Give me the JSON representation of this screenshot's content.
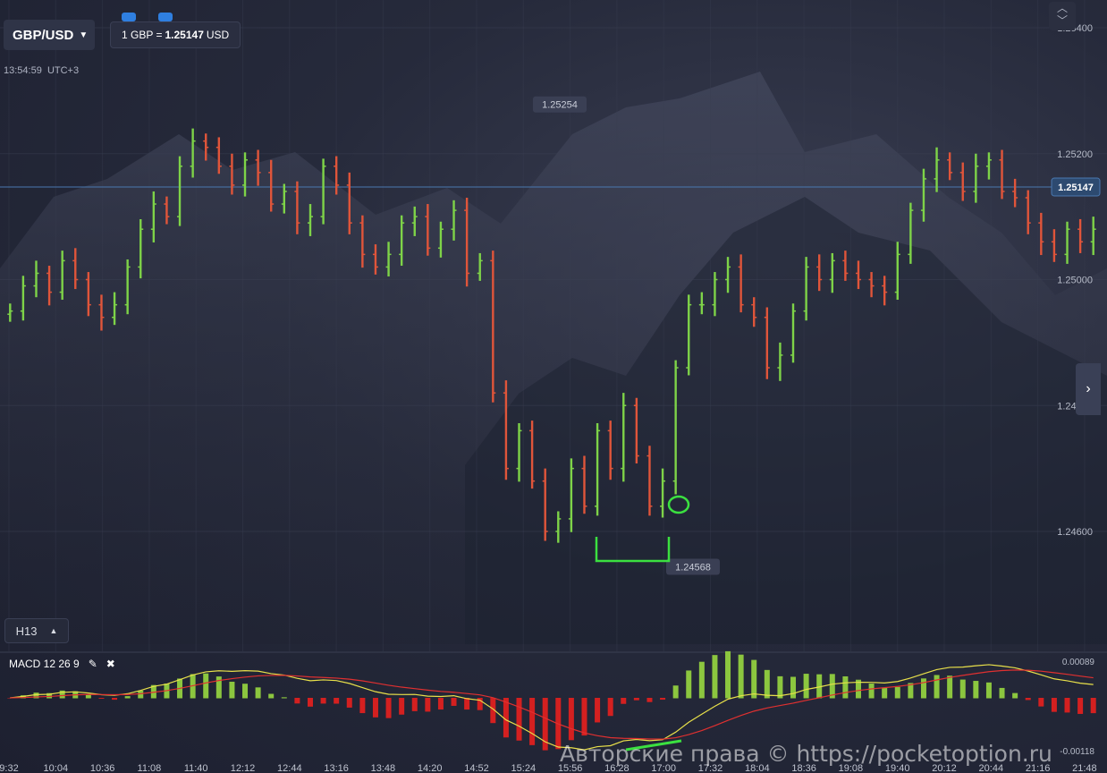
{
  "pair": {
    "label": "GBP/USD"
  },
  "rate": {
    "prefix": "1 GBP =",
    "value": "1.25147",
    "suffix": "USD"
  },
  "clock": {
    "time": "13:54:59",
    "tz": "UTC+3"
  },
  "timeframe": {
    "label": "H13"
  },
  "macd": {
    "label": "MACD 12 26 9",
    "top_value": "0.00089",
    "bottom_value": "-0.00118"
  },
  "watermark": "Авторские права © https://pocketoption.ru",
  "colors": {
    "up": "#7ed348",
    "down": "#e0553a",
    "current": "#2d4a70"
  },
  "chart_data": {
    "type": "ohlc",
    "y_ticks": [
      "1.25400",
      "1.25200",
      "1.25000",
      "1.24800",
      "1.24600"
    ],
    "current_price": "1.25147",
    "max_label": "1.25254",
    "min_label": "1.24568",
    "x_ticks": [
      "9:32",
      "10:04",
      "10:36",
      "11:08",
      "11:40",
      "12:12",
      "12:44",
      "13:16",
      "13:48",
      "14:20",
      "14:52",
      "15:24",
      "15:56",
      "16:28",
      "17:00",
      "17:32",
      "18:04",
      "18:36",
      "19:08",
      "19:40",
      "20:12",
      "20:44",
      "21:16",
      "21:48"
    ],
    "closes": [
      1.2495,
      1.2499,
      1.2501,
      1.2498,
      1.2503,
      1.25,
      1.2496,
      1.2494,
      1.2496,
      1.2502,
      1.2508,
      1.2512,
      1.251,
      1.2518,
      1.2522,
      1.2521,
      1.2518,
      1.2515,
      1.2519,
      1.2517,
      1.2512,
      1.2514,
      1.2509,
      1.251,
      1.2518,
      1.2515,
      1.2509,
      1.2504,
      1.2502,
      1.2504,
      1.2509,
      1.251,
      1.2505,
      1.2508,
      1.2511,
      1.2501,
      1.2503,
      1.2482,
      1.247,
      1.2476,
      1.2468,
      1.246,
      1.2462,
      1.247,
      1.2464,
      1.2476,
      1.247,
      1.248,
      1.2472,
      1.2464,
      1.2468,
      1.2486,
      1.2496,
      1.2496,
      1.25,
      1.2502,
      1.2496,
      1.2494,
      1.2486,
      1.2488,
      1.2495,
      1.2502,
      1.25,
      1.2503,
      1.2501,
      1.25,
      1.2499,
      1.2498,
      1.2504,
      1.2511,
      1.2516,
      1.2519,
      1.2517,
      1.2514,
      1.2518,
      1.2519,
      1.2514,
      1.2513,
      1.2509,
      1.2506,
      1.2504,
      1.2508,
      1.2506,
      1.2508
    ]
  }
}
